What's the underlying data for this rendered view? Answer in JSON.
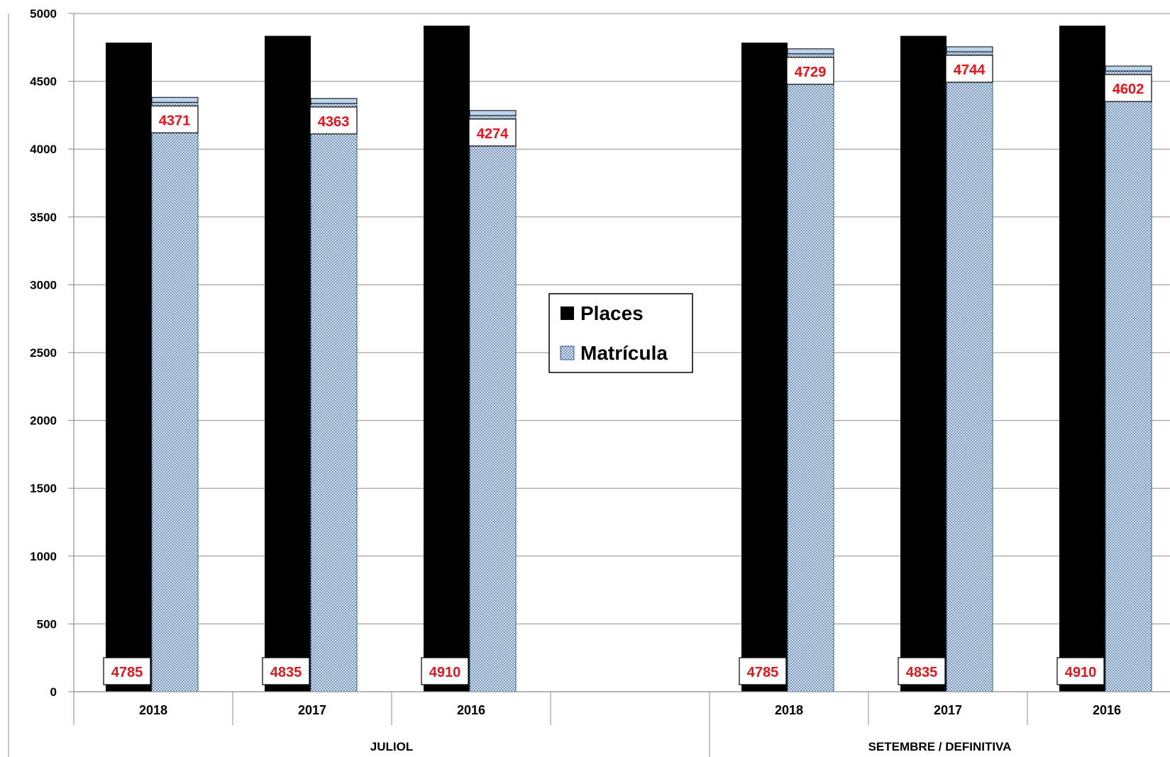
{
  "chart_data": {
    "type": "bar",
    "y_axis": {
      "ylim": [
        0,
        5000
      ],
      "ticks": [
        0,
        500,
        1000,
        1500,
        2000,
        2500,
        3000,
        3500,
        4000,
        4500,
        5000
      ],
      "grid": true
    },
    "groups": [
      {
        "label": "JULIOL",
        "categories": [
          "2018",
          "2017",
          "2016",
          ""
        ]
      },
      {
        "label": "SETEMBRE / DEFINITIVA",
        "categories": [
          "2018",
          "2017",
          "2016"
        ]
      }
    ],
    "categories": [
      "2018",
      "2017",
      "2016",
      "",
      "2018",
      "2017",
      "2016"
    ],
    "series": [
      {
        "name": "Places",
        "values": [
          4785,
          4835,
          4910,
          null,
          4785,
          4835,
          4910
        ],
        "color": "#000000",
        "label_position": "bottom"
      },
      {
        "name": "Matrícula",
        "values": [
          4371,
          4363,
          4274,
          null,
          4729,
          4744,
          4602
        ],
        "color": "#bcd3ec",
        "pattern": "dotted",
        "label_position": "top"
      }
    ],
    "data_label_color": "#e8141b",
    "legend": {
      "placement": "center",
      "entries": [
        "Places",
        "Matrícula"
      ]
    }
  }
}
